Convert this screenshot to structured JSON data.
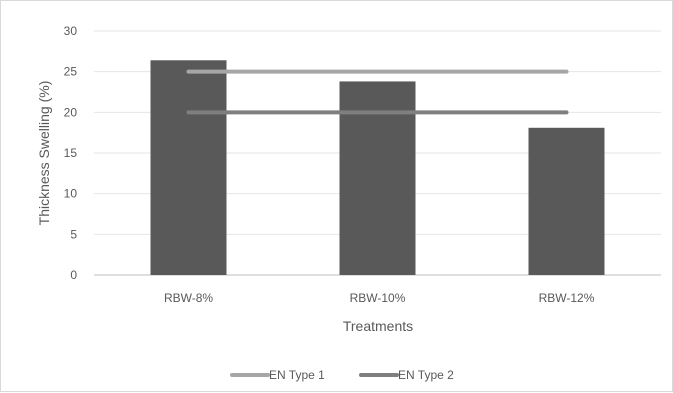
{
  "chart_data": {
    "type": "bar",
    "title": "",
    "xlabel": "Treatments",
    "ylabel": "Thickness Swelling (%)",
    "ylim": [
      0,
      30
    ],
    "yticks": [
      0,
      5,
      10,
      15,
      20,
      25,
      30
    ],
    "grid": true,
    "legend_position": "bottom",
    "categories": [
      "RBW-8%",
      "RBW-10%",
      "RBW-12%"
    ],
    "series": [
      {
        "values": [
          26.4,
          23.8,
          18.1
        ],
        "color": "#595959"
      }
    ],
    "reference_lines": [
      {
        "name": "EN Type 1",
        "value": 25,
        "color": "#a6a6a6"
      },
      {
        "name": "EN Type 2",
        "value": 20,
        "color": "#7f7f7f"
      }
    ]
  }
}
